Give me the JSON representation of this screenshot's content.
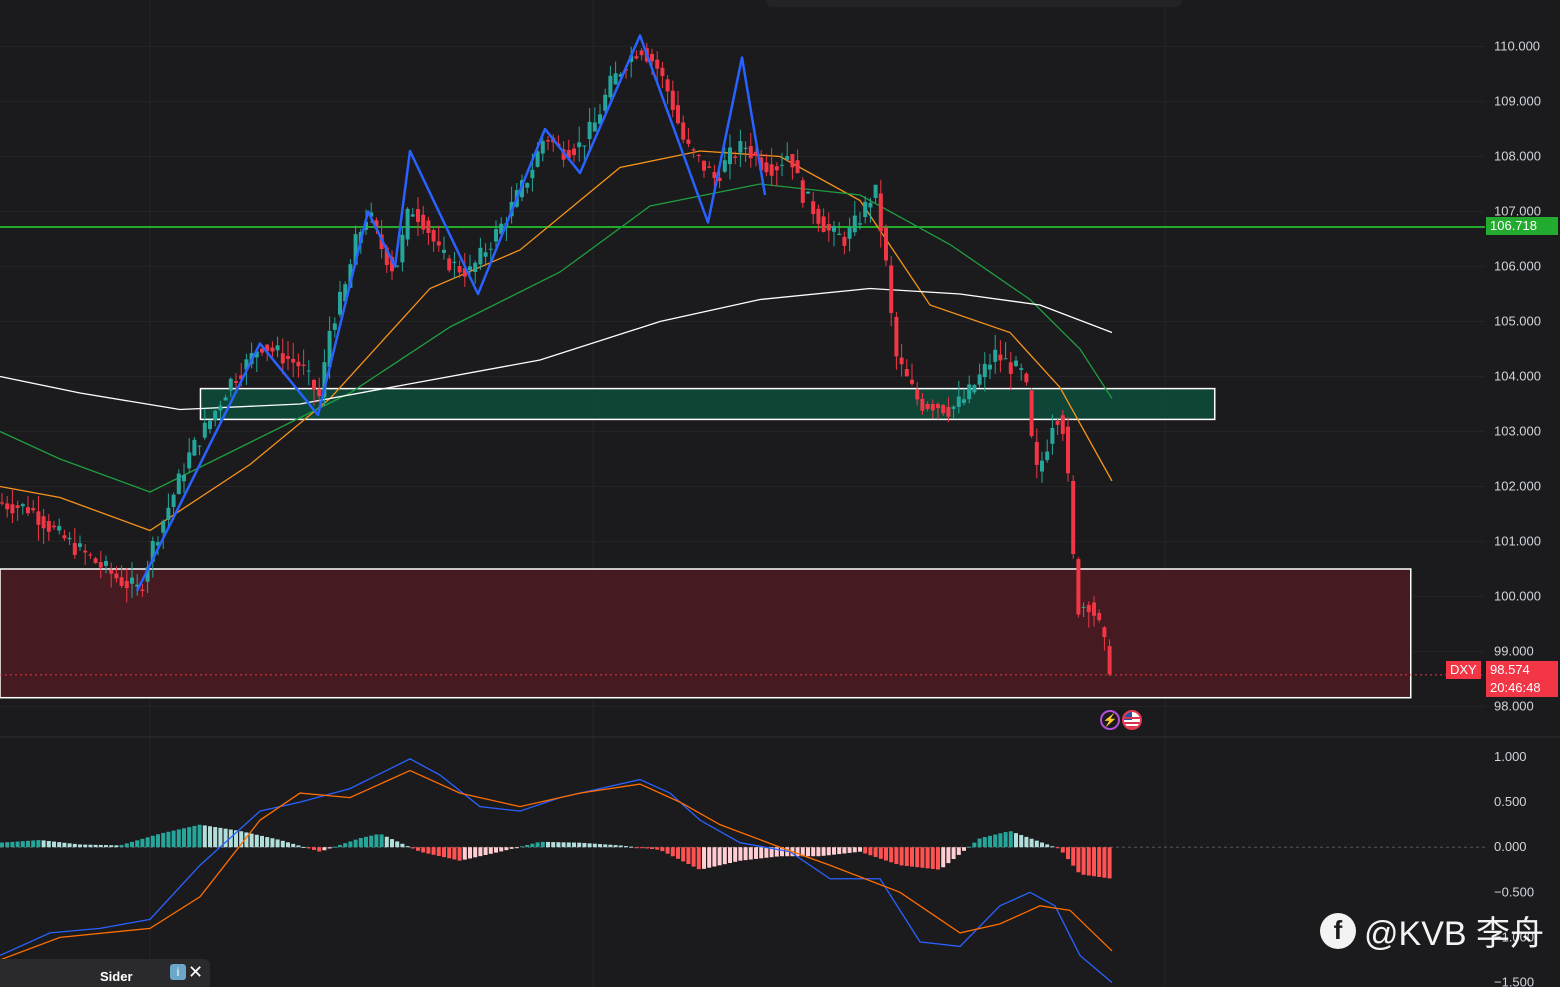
{
  "chart_data": {
    "type": "candlestick",
    "symbol": "DXY",
    "price_axis": {
      "ticks": [
        "110.000",
        "109.000",
        "108.000",
        "107.000",
        "106.000",
        "105.000",
        "104.000",
        "103.000",
        "102.000",
        "101.000",
        "100.000",
        "99.000",
        "98.000"
      ],
      "range": [
        97.9,
        110.3
      ]
    },
    "indicator_axis": {
      "ticks": [
        "1.000",
        "0.500",
        "0.000",
        "−0.500",
        "−1.000",
        "−1.500"
      ],
      "range": [
        -1.55,
        1.1
      ]
    },
    "horizontal_line": {
      "value": 106.718,
      "label": "106.718",
      "color": "#22ab2f"
    },
    "last_price": {
      "value": 98.574,
      "label": "98.574",
      "countdown": "20:46:48",
      "color": "#f23645"
    },
    "zones": [
      {
        "name": "support-resistance-zone",
        "low": 103.22,
        "high": 103.78,
        "x_start": 0.135,
        "x_end": 0.818,
        "color": "#0e4a3b"
      },
      {
        "name": "demand-zone",
        "low": 98.16,
        "high": 100.5,
        "x_start": 0.0,
        "x_end": 0.95,
        "color": "#4a1b21"
      }
    ],
    "price_path": [
      [
        0,
        101.7
      ],
      [
        30,
        101.6
      ],
      [
        60,
        101.1
      ],
      [
        90,
        100.7
      ],
      [
        120,
        100.3
      ],
      [
        140,
        100.1
      ],
      [
        150,
        100.8
      ],
      [
        170,
        101.7
      ],
      [
        190,
        102.6
      ],
      [
        210,
        103.2
      ],
      [
        230,
        103.9
      ],
      [
        250,
        104.3
      ],
      [
        260,
        104.6
      ],
      [
        280,
        104.4
      ],
      [
        300,
        104.2
      ],
      [
        320,
        103.6
      ],
      [
        330,
        104.9
      ],
      [
        345,
        105.6
      ],
      [
        355,
        106.4
      ],
      [
        368,
        107.0
      ],
      [
        380,
        106.4
      ],
      [
        395,
        105.9
      ],
      [
        410,
        107.1
      ],
      [
        425,
        106.8
      ],
      [
        440,
        106.2
      ],
      [
        455,
        106.0
      ],
      [
        470,
        105.9
      ],
      [
        485,
        106.3
      ],
      [
        500,
        106.7
      ],
      [
        515,
        107.2
      ],
      [
        530,
        107.7
      ],
      [
        545,
        108.4
      ],
      [
        560,
        108.1
      ],
      [
        580,
        108.2
      ],
      [
        595,
        108.6
      ],
      [
        610,
        109.3
      ],
      [
        625,
        109.7
      ],
      [
        640,
        110.0
      ],
      [
        655,
        109.7
      ],
      [
        670,
        109.1
      ],
      [
        685,
        108.2
      ],
      [
        700,
        107.9
      ],
      [
        715,
        107.6
      ],
      [
        730,
        108.0
      ],
      [
        745,
        108.2
      ],
      [
        760,
        107.9
      ],
      [
        775,
        107.8
      ],
      [
        790,
        108.1
      ],
      [
        800,
        107.4
      ],
      [
        815,
        107.0
      ],
      [
        830,
        106.6
      ],
      [
        845,
        106.5
      ],
      [
        860,
        106.9
      ],
      [
        875,
        107.4
      ],
      [
        885,
        106.2
      ],
      [
        895,
        104.4
      ],
      [
        905,
        104.0
      ],
      [
        920,
        103.5
      ],
      [
        935,
        103.5
      ],
      [
        950,
        103.4
      ],
      [
        965,
        103.6
      ],
      [
        980,
        104.0
      ],
      [
        995,
        104.4
      ],
      [
        1010,
        104.2
      ],
      [
        1025,
        104.0
      ],
      [
        1035,
        102.2
      ],
      [
        1045,
        102.6
      ],
      [
        1055,
        103.4
      ],
      [
        1065,
        103.0
      ],
      [
        1072,
        100.9
      ],
      [
        1078,
        99.8
      ],
      [
        1090,
        99.9
      ],
      [
        1100,
        99.4
      ],
      [
        1112,
        98.574
      ]
    ],
    "moving_averages": [
      {
        "color": "#f7931a",
        "points": [
          [
            0,
            102.0
          ],
          [
            60,
            101.8
          ],
          [
            150,
            101.2
          ],
          [
            250,
            102.4
          ],
          [
            330,
            103.6
          ],
          [
            430,
            105.6
          ],
          [
            520,
            106.3
          ],
          [
            620,
            107.8
          ],
          [
            700,
            108.1
          ],
          [
            780,
            108.0
          ],
          [
            860,
            107.2
          ],
          [
            930,
            105.3
          ],
          [
            1010,
            104.8
          ],
          [
            1060,
            103.8
          ],
          [
            1112,
            102.1
          ]
        ]
      },
      {
        "color": "#1e9e3f",
        "points": [
          [
            0,
            103.0
          ],
          [
            60,
            102.5
          ],
          [
            150,
            101.9
          ],
          [
            250,
            102.8
          ],
          [
            350,
            103.7
          ],
          [
            450,
            104.9
          ],
          [
            560,
            105.9
          ],
          [
            650,
            107.1
          ],
          [
            760,
            107.5
          ],
          [
            860,
            107.3
          ],
          [
            950,
            106.4
          ],
          [
            1030,
            105.4
          ],
          [
            1080,
            104.5
          ],
          [
            1112,
            103.6
          ]
        ]
      },
      {
        "color": "#ffffff",
        "points": [
          [
            0,
            104.0
          ],
          [
            80,
            103.7
          ],
          [
            180,
            103.4
          ],
          [
            300,
            103.5
          ],
          [
            420,
            103.9
          ],
          [
            540,
            104.3
          ],
          [
            660,
            105.0
          ],
          [
            760,
            105.4
          ],
          [
            870,
            105.6
          ],
          [
            960,
            105.5
          ],
          [
            1040,
            105.3
          ],
          [
            1112,
            104.8
          ]
        ]
      }
    ],
    "wave_markup": [
      [
        137,
        100.1
      ],
      [
        260,
        104.6
      ],
      [
        318,
        103.3
      ],
      [
        368,
        107.0
      ],
      [
        395,
        106.0
      ],
      [
        410,
        108.1
      ],
      [
        478,
        105.5
      ],
      [
        545,
        108.5
      ],
      [
        580,
        107.7
      ],
      [
        640,
        110.2
      ],
      [
        708,
        106.8
      ],
      [
        742,
        109.8
      ],
      [
        765,
        107.3
      ]
    ],
    "indicator": {
      "macd_line": [
        [
          0,
          -1.2
        ],
        [
          50,
          -0.95
        ],
        [
          100,
          -0.9
        ],
        [
          150,
          -0.8
        ],
        [
          200,
          -0.2
        ],
        [
          260,
          0.4
        ],
        [
          300,
          0.5
        ],
        [
          350,
          0.65
        ],
        [
          410,
          0.98
        ],
        [
          440,
          0.8
        ],
        [
          480,
          0.45
        ],
        [
          520,
          0.4
        ],
        [
          560,
          0.55
        ],
        [
          600,
          0.65
        ],
        [
          640,
          0.75
        ],
        [
          670,
          0.6
        ],
        [
          700,
          0.3
        ],
        [
          740,
          0.05
        ],
        [
          790,
          -0.05
        ],
        [
          830,
          -0.35
        ],
        [
          880,
          -0.35
        ],
        [
          920,
          -1.05
        ],
        [
          960,
          -1.1
        ],
        [
          1000,
          -0.65
        ],
        [
          1030,
          -0.5
        ],
        [
          1055,
          -0.65
        ],
        [
          1080,
          -1.2
        ],
        [
          1112,
          -1.5
        ]
      ],
      "signal_line": [
        [
          0,
          -1.25
        ],
        [
          60,
          -1.0
        ],
        [
          150,
          -0.9
        ],
        [
          200,
          -0.55
        ],
        [
          260,
          0.3
        ],
        [
          300,
          0.6
        ],
        [
          350,
          0.55
        ],
        [
          410,
          0.85
        ],
        [
          460,
          0.6
        ],
        [
          520,
          0.45
        ],
        [
          580,
          0.6
        ],
        [
          640,
          0.7
        ],
        [
          680,
          0.5
        ],
        [
          720,
          0.25
        ],
        [
          780,
          0.0
        ],
        [
          830,
          -0.2
        ],
        [
          900,
          -0.5
        ],
        [
          960,
          -0.95
        ],
        [
          1000,
          -0.85
        ],
        [
          1040,
          -0.65
        ],
        [
          1070,
          -0.7
        ],
        [
          1112,
          -1.15
        ]
      ],
      "histogram": [
        [
          0,
          0.05
        ],
        [
          40,
          0.08
        ],
        [
          80,
          0.03
        ],
        [
          120,
          0.02
        ],
        [
          160,
          0.15
        ],
        [
          200,
          0.25
        ],
        [
          240,
          0.18
        ],
        [
          280,
          0.08
        ],
        [
          320,
          -0.05
        ],
        [
          360,
          0.1
        ],
        [
          380,
          0.15
        ],
        [
          420,
          -0.05
        ],
        [
          460,
          -0.15
        ],
        [
          500,
          -0.05
        ],
        [
          540,
          0.06
        ],
        [
          580,
          0.05
        ],
        [
          620,
          0.02
        ],
        [
          660,
          -0.03
        ],
        [
          700,
          -0.25
        ],
        [
          740,
          -0.15
        ],
        [
          780,
          -0.1
        ],
        [
          820,
          -0.1
        ],
        [
          860,
          -0.05
        ],
        [
          900,
          -0.2
        ],
        [
          940,
          -0.25
        ],
        [
          980,
          0.1
        ],
        [
          1010,
          0.18
        ],
        [
          1030,
          0.1
        ],
        [
          1060,
          -0.02
        ],
        [
          1080,
          -0.3
        ],
        [
          1112,
          -0.35
        ]
      ]
    }
  },
  "labels": {
    "symbol_tag": "DXY",
    "last_price": "98.574",
    "countdown": "20:46:48",
    "hline_price": "106.718",
    "watermark": "@KVB 李舟",
    "sider": "Sider",
    "sider_info": "i",
    "sider_close": "✕",
    "event_flash": "⚡"
  },
  "colors": {
    "up": "#26a69a",
    "down": "#f23645",
    "wave": "#2962ff",
    "background": "#1b1b1d"
  }
}
